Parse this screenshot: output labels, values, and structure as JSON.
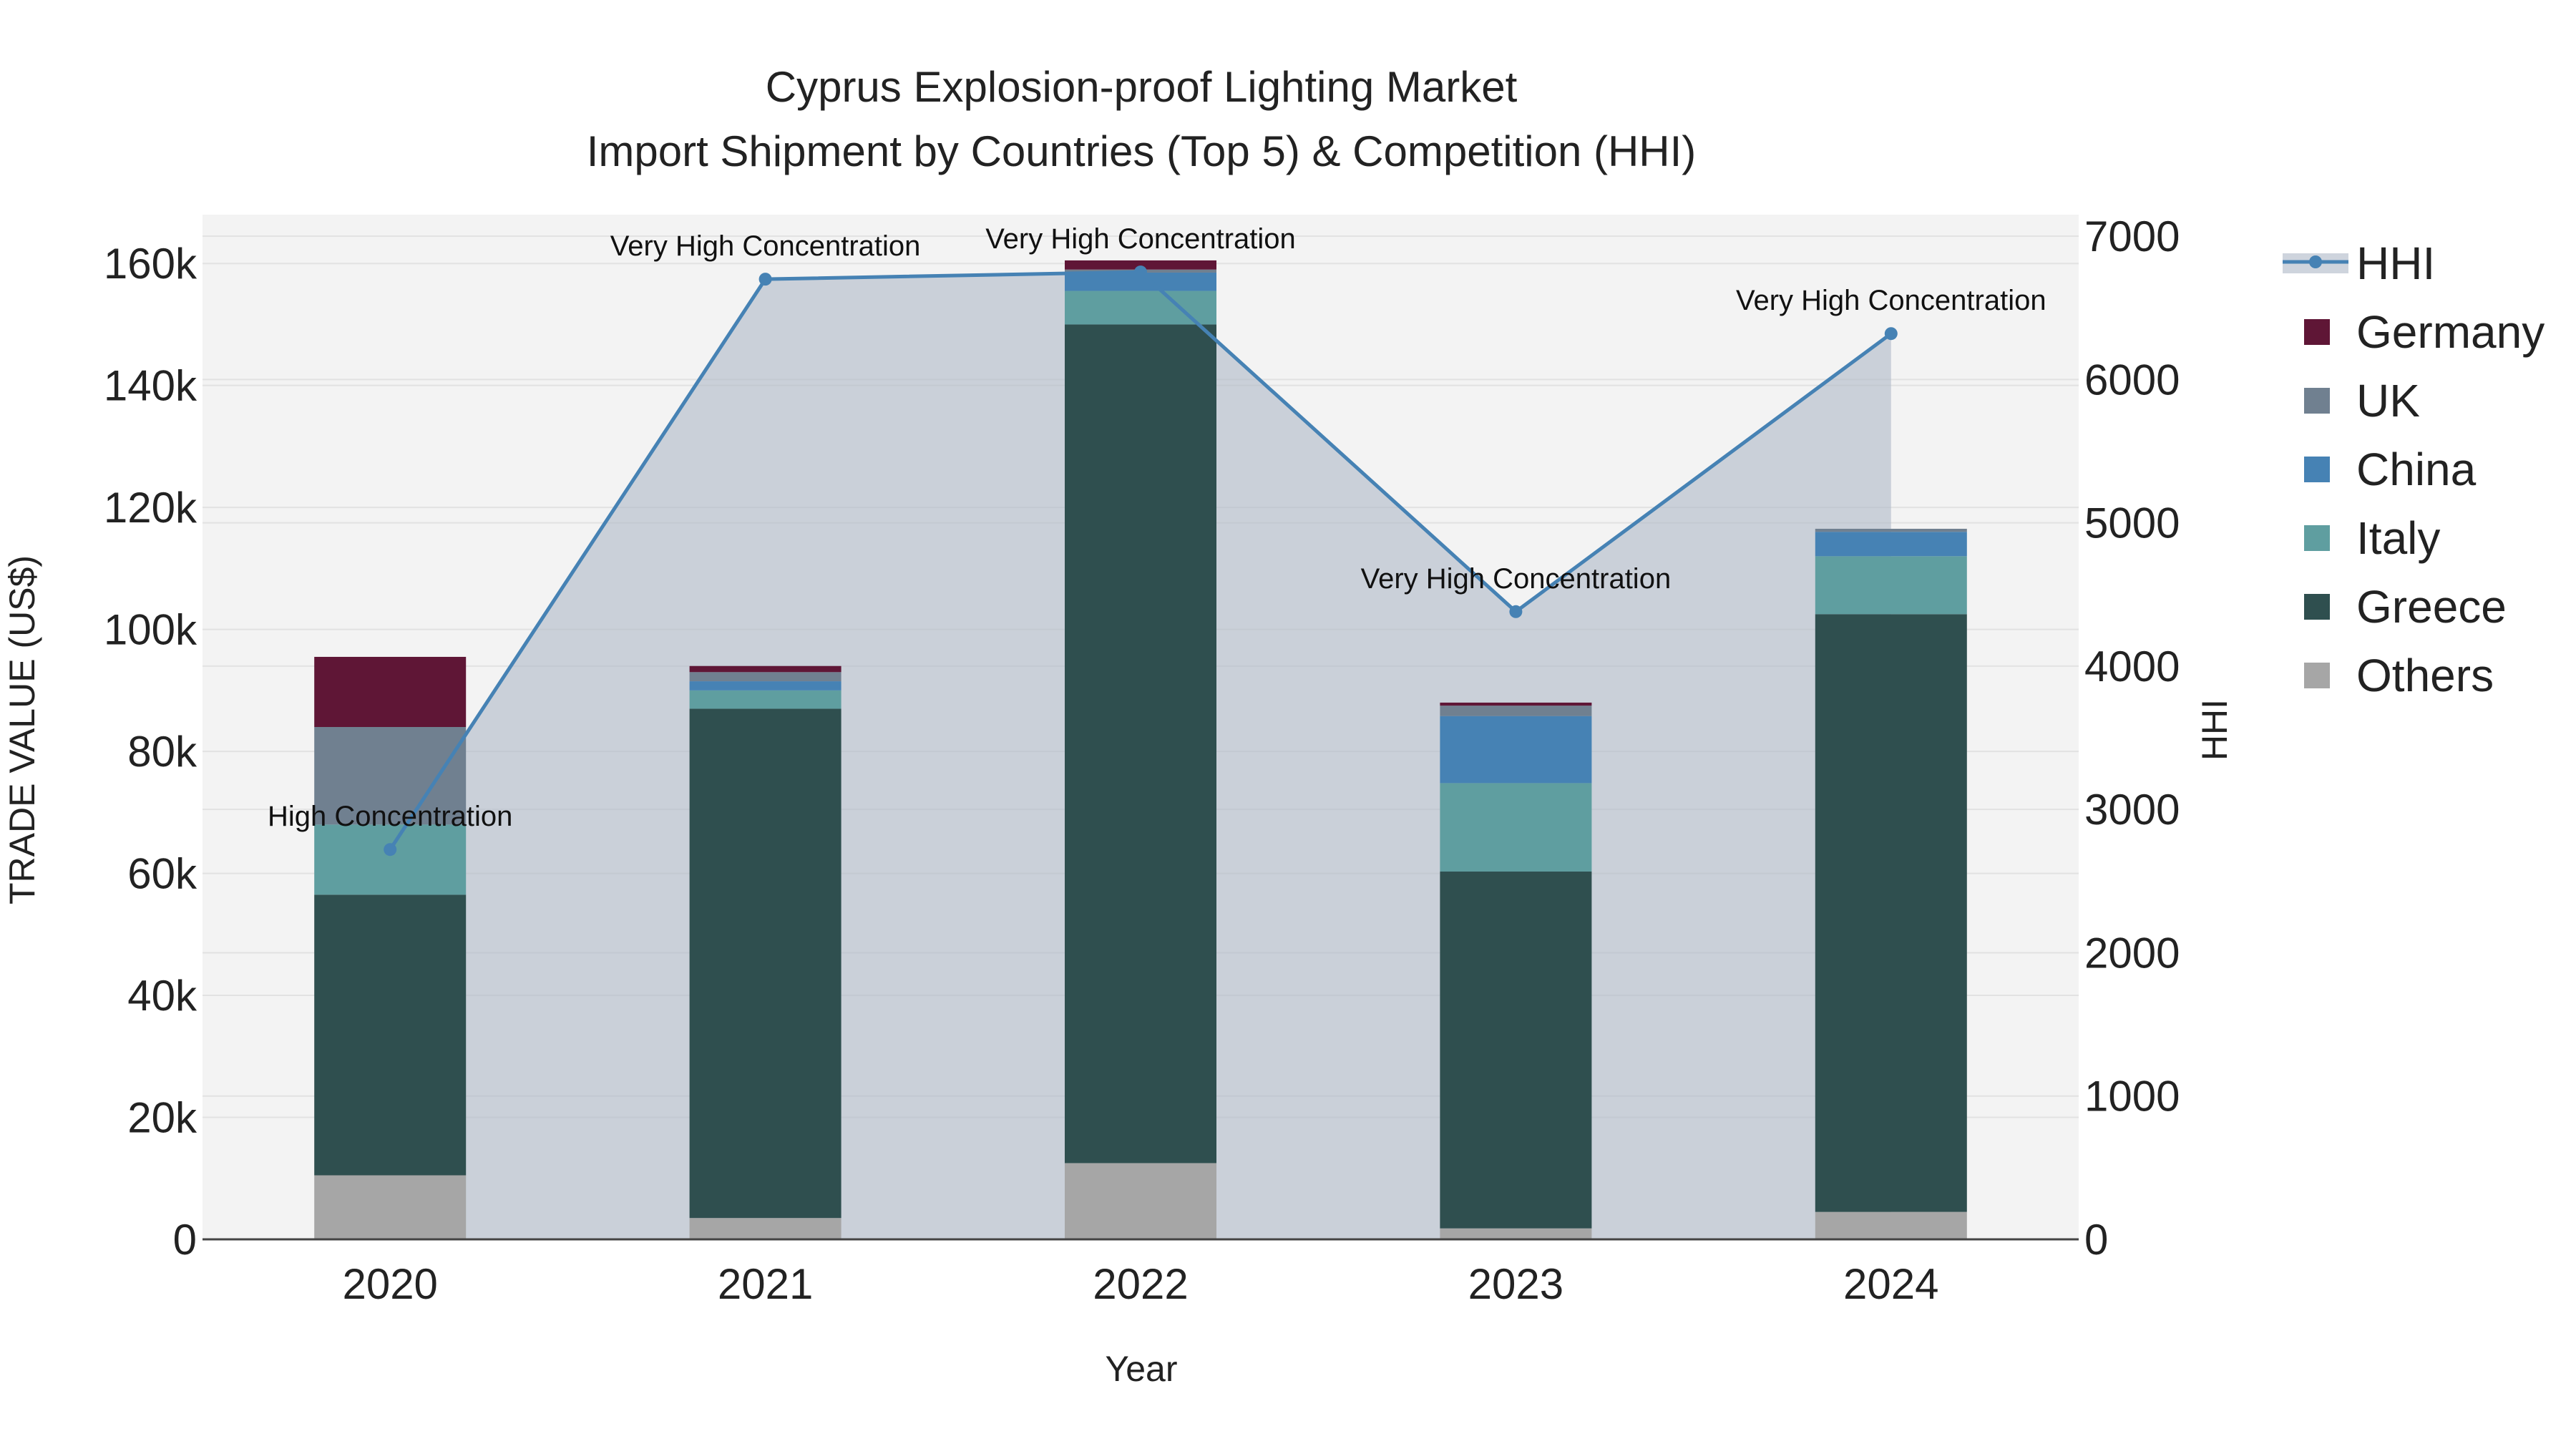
{
  "chart_data": {
    "type": "bar",
    "title_line1": "Cyprus Explosion-proof Lighting Market",
    "title_line2": "Import Shipment by Countries (Top 5) & Competition (HHI)",
    "xlabel": "Year",
    "ylabel": "TRADE VALUE (US$)",
    "y2label": "HHI",
    "categories": [
      "2020",
      "2021",
      "2022",
      "2023",
      "2024"
    ],
    "ylim": [
      0,
      168000
    ],
    "y2lim": [
      0,
      7150
    ],
    "yticks": [
      0,
      20000,
      40000,
      60000,
      80000,
      100000,
      120000,
      140000,
      160000
    ],
    "ytick_labels": [
      "0",
      "20k",
      "40k",
      "60k",
      "80k",
      "100k",
      "120k",
      "140k",
      "160k"
    ],
    "y2ticks": [
      0,
      1000,
      2000,
      3000,
      4000,
      5000,
      6000,
      7000
    ],
    "y2tick_labels": [
      "0",
      "1000",
      "2000",
      "3000",
      "4000",
      "5000",
      "6000",
      "7000"
    ],
    "series": [
      {
        "name": "Others",
        "color": "#a6a6a6",
        "values": [
          10500,
          3500,
          12500,
          1800,
          4500
        ]
      },
      {
        "name": "Greece",
        "color": "#2f4f4f",
        "values": [
          46000,
          83500,
          137500,
          58500,
          98000
        ]
      },
      {
        "name": "Italy",
        "color": "#5f9ea0",
        "values": [
          11500,
          3000,
          5500,
          14500,
          9500
        ]
      },
      {
        "name": "China",
        "color": "#4682b4",
        "values": [
          0,
          1500,
          3000,
          11000,
          4000
        ]
      },
      {
        "name": "UK",
        "color": "#708090",
        "values": [
          16000,
          1500,
          500,
          1700,
          500
        ]
      },
      {
        "name": "Germany",
        "color": "#5f1636",
        "values": [
          11500,
          1000,
          1500,
          500,
          0
        ]
      }
    ],
    "hhi": {
      "name": "HHI",
      "color": "#4682b4",
      "values": [
        2720,
        6700,
        6750,
        4380,
        6320
      ],
      "annotations": [
        "High Concentration",
        "Very High Concentration",
        "Very High Concentration",
        "Very High Concentration",
        "Very High Concentration"
      ]
    },
    "legend_order": [
      "HHI",
      "Germany",
      "UK",
      "China",
      "Italy",
      "Greece",
      "Others"
    ]
  }
}
